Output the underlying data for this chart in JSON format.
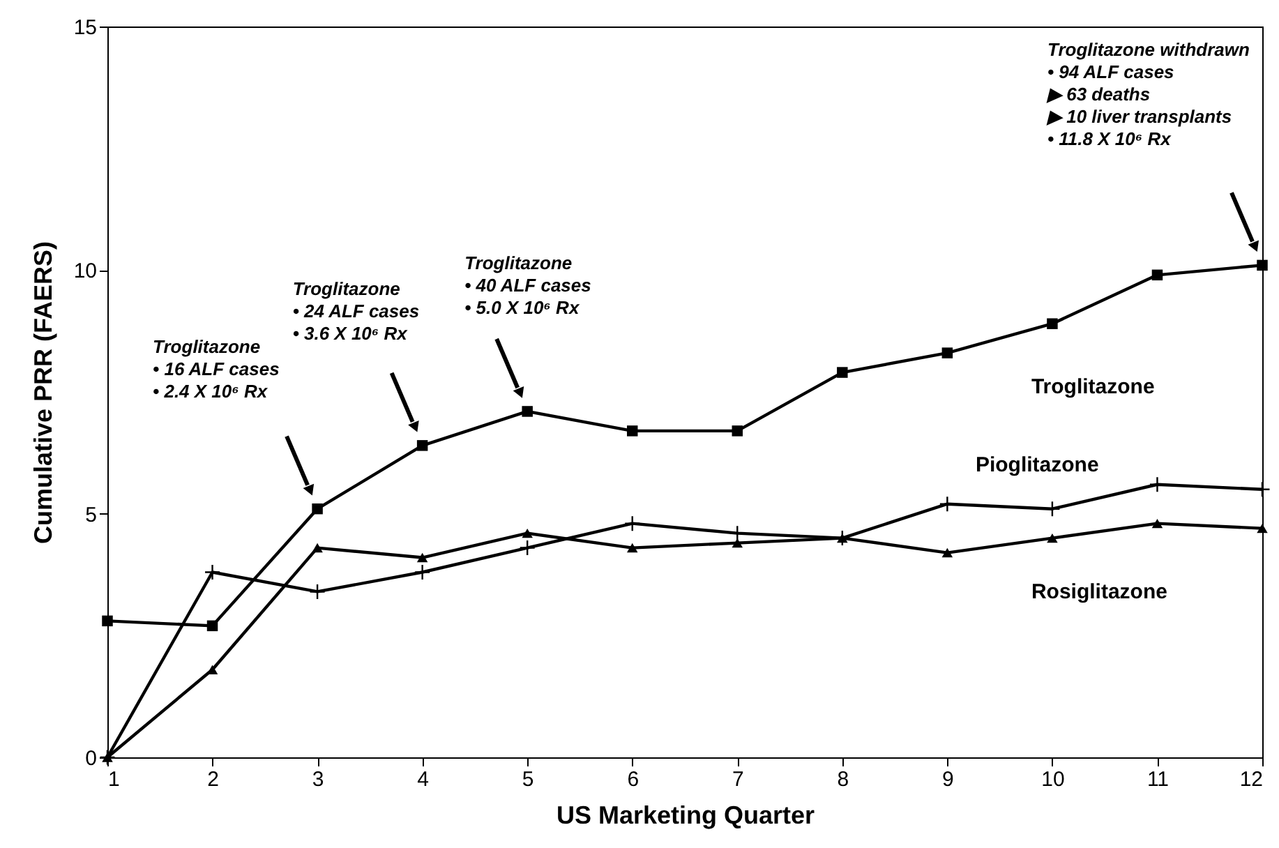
{
  "chart_data": {
    "type": "line",
    "xlabel": "US Marketing Quarter",
    "ylabel": "Cumulative PRR (FAERS)",
    "x": [
      1,
      2,
      3,
      4,
      5,
      6,
      7,
      8,
      9,
      10,
      11,
      12
    ],
    "xlim": [
      1,
      12
    ],
    "xticks": [
      1,
      2,
      3,
      4,
      5,
      6,
      7,
      8,
      9,
      10,
      11,
      12
    ],
    "ylim": [
      0,
      15
    ],
    "yticks": [
      0,
      5,
      10,
      15
    ],
    "grid": false,
    "legend": false,
    "line_style": "solid",
    "series": [
      {
        "name": "Troglitazone",
        "color": "#000000",
        "marker": "square",
        "values": [
          2.8,
          2.7,
          5.1,
          6.4,
          7.1,
          6.7,
          6.7,
          7.9,
          8.3,
          8.9,
          9.9,
          10.1
        ]
      },
      {
        "name": "Pioglitazone",
        "color": "#000000",
        "marker": "cross",
        "values": [
          0,
          3.8,
          3.4,
          3.8,
          4.3,
          4.8,
          4.6,
          4.5,
          5.2,
          5.1,
          5.6,
          5.5
        ]
      },
      {
        "name": "Rosiglitazone",
        "color": "#000000",
        "marker": "triangle",
        "values": [
          0,
          1.8,
          4.3,
          4.1,
          4.6,
          4.3,
          4.4,
          4.5,
          4.2,
          4.5,
          4.8,
          4.7
        ]
      }
    ],
    "annotations": [
      "Troglitazone\n• 16 ALF cases\n• 2.4 X 10⁶ Rx",
      "Troglitazone\n• 24 ALF cases\n• 3.6 X 10⁶ Rx",
      "Troglitazone\n• 40 ALF cases\n• 5.0 X 10⁶ Rx",
      "Troglitazone withdrawn\n• 94 ALF cases\n   ▶ 63 deaths\n   ▶ 10 liver transplants\n• 11.8 X 10⁶ Rx"
    ]
  }
}
